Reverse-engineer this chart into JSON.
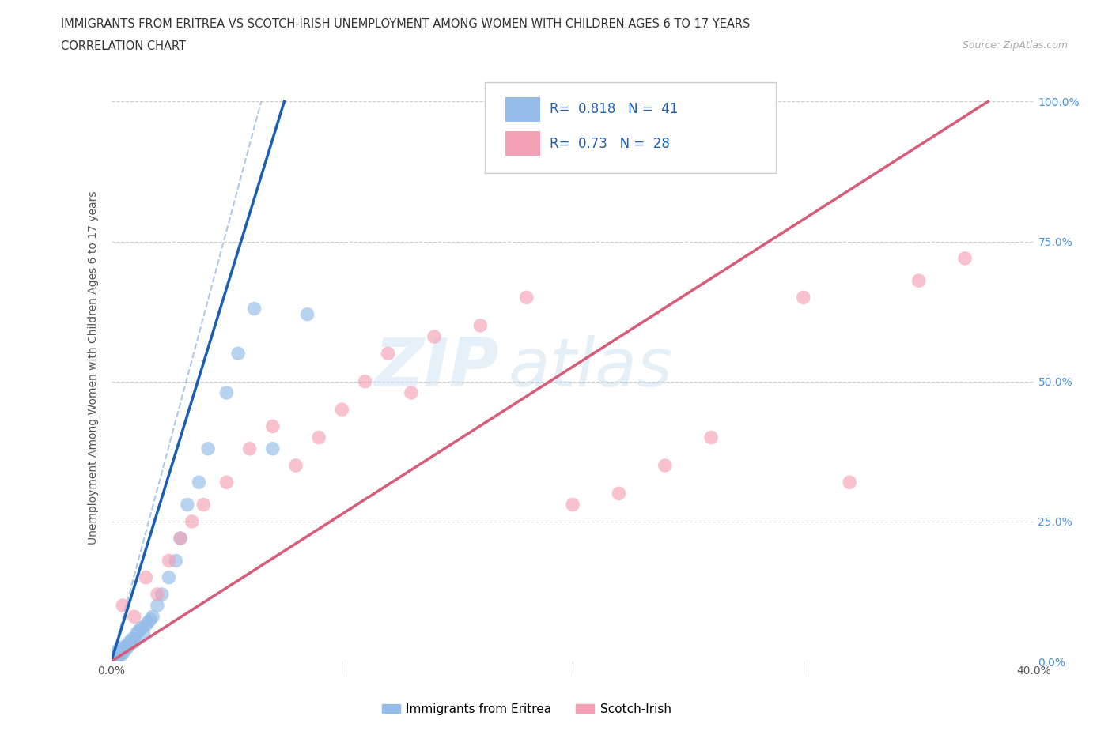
{
  "title_line1": "IMMIGRANTS FROM ERITREA VS SCOTCH-IRISH UNEMPLOYMENT AMONG WOMEN WITH CHILDREN AGES 6 TO 17 YEARS",
  "title_line2": "CORRELATION CHART",
  "source_text": "Source: ZipAtlas.com",
  "ylabel": "Unemployment Among Women with Children Ages 6 to 17 years",
  "xlim": [
    0,
    0.4
  ],
  "ylim": [
    0,
    1.05
  ],
  "r_eritrea": 0.818,
  "n_eritrea": 41,
  "r_scotch": 0.73,
  "n_scotch": 28,
  "color_eritrea": "#93bce8",
  "color_scotch": "#f4a0b5",
  "line_color_eritrea": "#1a5fb4",
  "line_color_scotch": "#d85c7a",
  "watermark_zip": "ZIP",
  "watermark_atlas": "atlas",
  "eritrea_x": [
    0.0,
    0.001,
    0.001,
    0.002,
    0.002,
    0.003,
    0.003,
    0.004,
    0.004,
    0.005,
    0.005,
    0.006,
    0.006,
    0.007,
    0.007,
    0.008,
    0.008,
    0.009,
    0.01,
    0.01,
    0.011,
    0.012,
    0.013,
    0.014,
    0.015,
    0.016,
    0.017,
    0.018,
    0.02,
    0.022,
    0.025,
    0.028,
    0.03,
    0.033,
    0.038,
    0.042,
    0.05,
    0.055,
    0.062,
    0.07,
    0.085
  ],
  "eritrea_y": [
    0.0,
    0.005,
    0.01,
    0.005,
    0.015,
    0.01,
    0.02,
    0.01,
    0.025,
    0.015,
    0.02,
    0.02,
    0.025,
    0.03,
    0.025,
    0.035,
    0.03,
    0.04,
    0.035,
    0.04,
    0.05,
    0.055,
    0.06,
    0.05,
    0.065,
    0.07,
    0.075,
    0.08,
    0.1,
    0.12,
    0.15,
    0.18,
    0.22,
    0.28,
    0.32,
    0.38,
    0.48,
    0.55,
    0.63,
    0.38,
    0.62
  ],
  "scotch_x": [
    0.005,
    0.01,
    0.015,
    0.02,
    0.025,
    0.03,
    0.035,
    0.04,
    0.05,
    0.06,
    0.07,
    0.08,
    0.09,
    0.1,
    0.11,
    0.12,
    0.13,
    0.14,
    0.16,
    0.18,
    0.2,
    0.22,
    0.24,
    0.26,
    0.3,
    0.32,
    0.35,
    0.37
  ],
  "scotch_y": [
    0.1,
    0.08,
    0.15,
    0.12,
    0.18,
    0.22,
    0.25,
    0.28,
    0.32,
    0.38,
    0.42,
    0.35,
    0.4,
    0.45,
    0.5,
    0.55,
    0.48,
    0.58,
    0.6,
    0.65,
    0.28,
    0.3,
    0.35,
    0.4,
    0.65,
    0.32,
    0.68,
    0.72
  ],
  "scotch_line_x0": 0.0,
  "scotch_line_y0": 0.0,
  "scotch_line_x1": 0.38,
  "scotch_line_y1": 1.0,
  "eritrea_line_x0": 0.0,
  "eritrea_line_y0": 0.0,
  "eritrea_line_x1": 0.075,
  "eritrea_line_y1": 1.0
}
